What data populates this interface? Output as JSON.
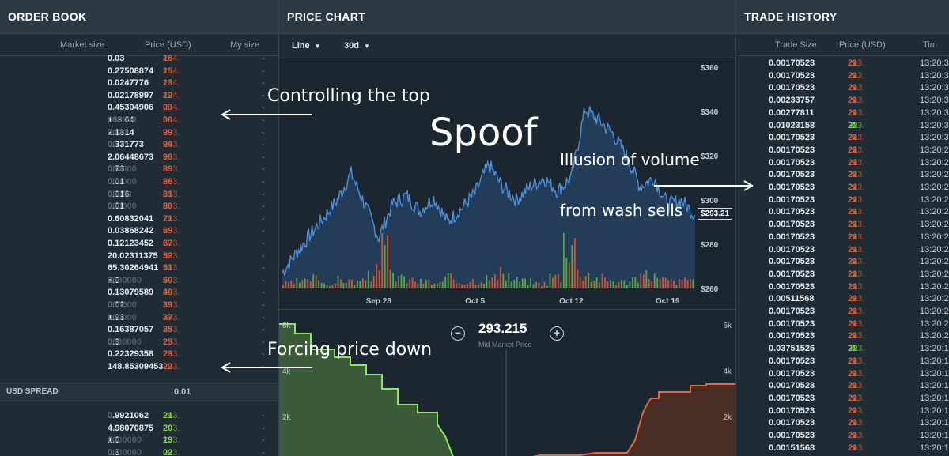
{
  "orderbook": {
    "title": "ORDER BOOK",
    "columns": [
      "Market size",
      "Price (USD)",
      "My size"
    ],
    "asks": [
      {
        "size_main": "0.03",
        "size_dim": "",
        "price_main": "294.",
        "price_dec": "16",
        "my": "-"
      },
      {
        "size_main": "0.27508874",
        "size_dim": "",
        "price_main": "294.",
        "price_dec": "15",
        "my": "-"
      },
      {
        "size_main": "0.0247776",
        "size_dim": "",
        "price_main": "294.",
        "price_dec": "13",
        "my": "-"
      },
      {
        "size_main": "0.02178997",
        "size_dim": "",
        "price_main": "294.",
        "price_dec": "12",
        "my": "-"
      },
      {
        "size_main": "0.45304906",
        "size_dim": "",
        "price_main": "294.",
        "price_dec": "03",
        "my": "-"
      },
      {
        "size_main": "103.64",
        "size_dim": "000000",
        "price_main": "294.",
        "price_dec": "00",
        "my": "-"
      },
      {
        "size_main": "2.1814",
        "size_dim": "0000",
        "price_main": "293.",
        "price_dec": "99",
        "my": "-"
      },
      {
        "size_main": "0.331773",
        "size_dim": "00",
        "price_main": "293.",
        "price_dec": "94",
        "my": "-"
      },
      {
        "size_main": "2.06448673",
        "size_dim": "",
        "price_main": "293.",
        "price_dec": "90",
        "my": "-"
      },
      {
        "size_main": "0.73",
        "size_dim": "000000",
        "price_main": "293.",
        "price_dec": "89",
        "my": "-"
      },
      {
        "size_main": "0.01",
        "size_dim": "000000",
        "price_main": "293.",
        "price_dec": "86",
        "my": "-"
      },
      {
        "size_main": "0.016",
        "size_dim": "00000",
        "price_main": "293.",
        "price_dec": "81",
        "my": "-"
      },
      {
        "size_main": "0.01",
        "size_dim": "000000",
        "price_main": "293.",
        "price_dec": "80",
        "my": "-"
      },
      {
        "size_main": "0.60832041",
        "size_dim": "",
        "price_main": "293.",
        "price_dec": "71",
        "my": "-"
      },
      {
        "size_main": "0.03868242",
        "size_dim": "",
        "price_main": "293.",
        "price_dec": "69",
        "my": "-"
      },
      {
        "size_main": "0.12123452",
        "size_dim": "",
        "price_main": "293.",
        "price_dec": "67",
        "my": "-"
      },
      {
        "size_main": "20.02311375",
        "size_dim": "",
        "price_main": "293.",
        "price_dec": "52",
        "my": "-"
      },
      {
        "size_main": "65.30264941",
        "size_dim": "",
        "price_main": "293.",
        "price_dec": "51",
        "my": "-"
      },
      {
        "size_main": "3.0",
        "size_dim": "0000000",
        "price_main": "293.",
        "price_dec": "50",
        "my": "-"
      },
      {
        "size_main": "0.13079589",
        "size_dim": "",
        "price_main": "293.",
        "price_dec": "40",
        "my": "-"
      },
      {
        "size_main": "0.02",
        "size_dim": "000000",
        "price_main": "293.",
        "price_dec": "39",
        "my": "-"
      },
      {
        "size_main": "1.93",
        "size_dim": "000000",
        "price_main": "293.",
        "price_dec": "37",
        "my": "-"
      },
      {
        "size_main": "0.16387057",
        "size_dim": "",
        "price_main": "293.",
        "price_dec": "35",
        "my": "-"
      },
      {
        "size_main": "0.3",
        "size_dim": "0000000",
        "price_main": "293.",
        "price_dec": "25",
        "my": "-"
      },
      {
        "size_main": "0.22329358",
        "size_dim": "",
        "price_main": "293.",
        "price_dec": "23",
        "my": "-"
      },
      {
        "size_main": "148.85309453",
        "size_dim": "",
        "price_main": "293.",
        "price_dec": "22",
        "my": "-"
      }
    ],
    "spread_label": "USD SPREAD",
    "spread_value": "0.01",
    "bids": [
      {
        "size_main": "0.9921062",
        "size_dim": "0",
        "price_main": "293.",
        "price_dec": "21",
        "my": "-"
      },
      {
        "size_main": "4.98070875",
        "size_dim": "",
        "price_main": "293.",
        "price_dec": "20",
        "my": "-"
      },
      {
        "size_main": "1.0",
        "size_dim": "0000000",
        "price_main": "293.",
        "price_dec": "19",
        "my": "-"
      },
      {
        "size_main": "0.3",
        "size_dim": "0000000",
        "price_main": "293.",
        "price_dec": "02",
        "my": "-"
      }
    ]
  },
  "price_chart": {
    "title": "PRICE CHART",
    "type_select": "Line",
    "range_select": "30d",
    "current_price_tag": "$293.21",
    "mid_market_price": "293.215",
    "mid_market_label": "Mid Market Price",
    "zoom_out_symbol": "−",
    "zoom_in_symbol": "+",
    "depth_ticks": [
      "6k",
      "4k",
      "2k"
    ],
    "colors": {
      "line": "#4c8ed9",
      "area": "#2a4f7a",
      "up": "#5aa63a",
      "down": "#d2552f",
      "bid_depth": "#8fe85c",
      "ask_depth": "#e5683a"
    }
  },
  "chart_data": {
    "type": "line",
    "x": [
      "Sep 21",
      "Sep 22",
      "Sep 23",
      "Sep 24",
      "Sep 25",
      "Sep 26",
      "Sep 27",
      "Sep 28",
      "Sep 29",
      "Sep 30",
      "Oct 1",
      "Oct 2",
      "Oct 3",
      "Oct 4",
      "Oct 5",
      "Oct 6",
      "Oct 7",
      "Oct 8",
      "Oct 9",
      "Oct 10",
      "Oct 11",
      "Oct 12",
      "Oct 13",
      "Oct 14",
      "Oct 15",
      "Oct 16",
      "Oct 17",
      "Oct 18",
      "Oct 19",
      "Oct 20",
      "Oct 21"
    ],
    "series": [
      {
        "values": [
          267,
          276,
          284,
          292,
          300,
          312,
          298,
          283,
          298,
          302,
          295,
          301,
          290,
          296,
          303,
          316,
          306,
          300,
          306,
          310,
          304,
          310,
          341,
          336,
          330,
          320,
          306,
          310,
          298,
          300,
          293
        ]
      }
    ],
    "x_ticks": [
      "Sep 28",
      "Oct 5",
      "Oct 12",
      "Oct 19"
    ],
    "y_ticks": [
      "$360",
      "$340",
      "$320",
      "$300",
      "$280",
      "$260"
    ],
    "ylim": [
      260,
      360
    ],
    "volume": [
      3,
      4,
      6,
      3,
      5,
      4,
      7,
      22,
      8,
      5,
      4,
      3,
      6,
      4,
      5,
      6,
      8,
      5,
      4,
      3,
      7,
      30,
      9,
      6,
      5,
      4,
      6,
      8,
      5,
      4,
      6
    ]
  },
  "trade_history": {
    "title": "TRADE HISTORY",
    "columns": [
      "Trade Size",
      "Price (USD)",
      "Tim"
    ],
    "rows": [
      {
        "size": "0.00170523",
        "price_main": "293.",
        "price_dec": "21",
        "dir": "down",
        "time": "13:20:3"
      },
      {
        "size": "0.00170523",
        "price_main": "293.",
        "price_dec": "21",
        "dir": "down",
        "time": "13:20:3"
      },
      {
        "size": "0.00170523",
        "price_main": "293.",
        "price_dec": "21",
        "dir": "down",
        "time": "13:20:3"
      },
      {
        "size": "0.00233757",
        "price_main": "293.",
        "price_dec": "21",
        "dir": "down",
        "time": "13:20:3"
      },
      {
        "size": "0.00277811",
        "price_main": "293.",
        "price_dec": "21",
        "dir": "down",
        "time": "13:20:3"
      },
      {
        "size": "0.01023158",
        "price_main": "293.",
        "price_dec": "22",
        "dir": "up",
        "time": "13:20:3"
      },
      {
        "size": "0.00170523",
        "price_main": "293.",
        "price_dec": "21",
        "dir": "down",
        "time": "13:20:3"
      },
      {
        "size": "0.00170523",
        "price_main": "293.",
        "price_dec": "21",
        "dir": "down",
        "time": "13:20:2"
      },
      {
        "size": "0.00170523",
        "price_main": "293.",
        "price_dec": "21",
        "dir": "down",
        "time": "13:20:2"
      },
      {
        "size": "0.00170523",
        "price_main": "293.",
        "price_dec": "21",
        "dir": "down",
        "time": "13:20:2"
      },
      {
        "size": "0.00170523",
        "price_main": "293.",
        "price_dec": "21",
        "dir": "down",
        "time": "13:20:2"
      },
      {
        "size": "0.00170523",
        "price_main": "293.",
        "price_dec": "21",
        "dir": "down",
        "time": "13:20:2"
      },
      {
        "size": "0.00170523",
        "price_main": "293.",
        "price_dec": "21",
        "dir": "down",
        "time": "13:20:2"
      },
      {
        "size": "0.00170523",
        "price_main": "293.",
        "price_dec": "21",
        "dir": "down",
        "time": "13:20:2"
      },
      {
        "size": "0.00170523",
        "price_main": "293.",
        "price_dec": "21",
        "dir": "down",
        "time": "13:20:2"
      },
      {
        "size": "0.00170523",
        "price_main": "293.",
        "price_dec": "21",
        "dir": "down",
        "time": "13:20:2"
      },
      {
        "size": "0.00170523",
        "price_main": "293.",
        "price_dec": "21",
        "dir": "down",
        "time": "13:20:2"
      },
      {
        "size": "0.00170523",
        "price_main": "293.",
        "price_dec": "21",
        "dir": "down",
        "time": "13:20:2"
      },
      {
        "size": "0.00170523",
        "price_main": "293.",
        "price_dec": "21",
        "dir": "down",
        "time": "13:20:2"
      },
      {
        "size": "0.00511568",
        "price_main": "293.",
        "price_dec": "21",
        "dir": "down",
        "time": "13:20:2"
      },
      {
        "size": "0.00170523",
        "price_main": "293.",
        "price_dec": "21",
        "dir": "down",
        "time": "13:20:2"
      },
      {
        "size": "0.00170523",
        "price_main": "293.",
        "price_dec": "21",
        "dir": "down",
        "time": "13:20:2"
      },
      {
        "size": "0.00170523",
        "price_main": "293.",
        "price_dec": "21",
        "dir": "down",
        "time": "13:20:2"
      },
      {
        "size": "0.03751526",
        "price_main": "293.",
        "price_dec": "22",
        "dir": "up",
        "time": "13:20:1"
      },
      {
        "size": "0.00170523",
        "price_main": "293.",
        "price_dec": "21",
        "dir": "down",
        "time": "13:20:1"
      },
      {
        "size": "0.00170523",
        "price_main": "293.",
        "price_dec": "21",
        "dir": "down",
        "time": "13:20:1"
      },
      {
        "size": "0.00170523",
        "price_main": "293.",
        "price_dec": "21",
        "dir": "down",
        "time": "13:20:1"
      },
      {
        "size": "0.00170523",
        "price_main": "293.",
        "price_dec": "21",
        "dir": "down",
        "time": "13:20:1"
      },
      {
        "size": "0.00170523",
        "price_main": "293.",
        "price_dec": "21",
        "dir": "down",
        "time": "13:20:1"
      },
      {
        "size": "0.00170523",
        "price_main": "293.",
        "price_dec": "21",
        "dir": "down",
        "time": "13:20:1"
      },
      {
        "size": "0.00170523",
        "price_main": "293.",
        "price_dec": "21",
        "dir": "down",
        "time": "13:20:1"
      },
      {
        "size": "0.00151568",
        "price_main": "293.",
        "price_dec": "21",
        "dir": "down",
        "time": "13:20:1"
      }
    ]
  },
  "annotations": {
    "controlling_top": "Controlling the top",
    "spoof": "Spoof",
    "illusion_volume": "Illusion of volume",
    "wash_sells": "from wash sells",
    "forcing_down": "Forcing price down"
  }
}
